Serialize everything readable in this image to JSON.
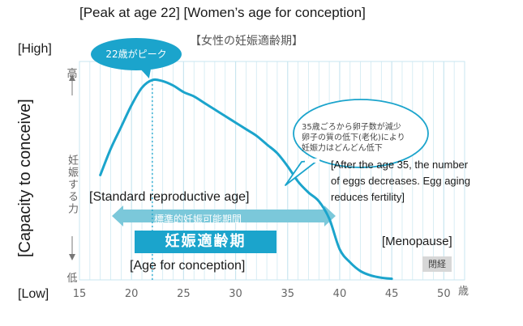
{
  "header": {
    "english_title": "[Peak at  age 22]  [Women’s age for conception]",
    "japanese_title": "【女性の妊娠適齢期】"
  },
  "labels": {
    "high_en": "[High]",
    "low_en": "[Low]",
    "y_axis_en": "[Capacity to conceive]",
    "y_high_jp": "高",
    "y_label_jp": "妊娠する力",
    "y_low_jp": "低",
    "x_unit_jp": "歳"
  },
  "annotations": {
    "peak_bubble": "22歳がピーク",
    "callout_jp_lines": [
      "35歳ごろから卵子数が減少",
      "卵子の質の低下(老化)により",
      "妊娠力はどんどん低下"
    ],
    "callout_en_lines": [
      "[After the age 35,  the number",
      "of eggs decreases. Egg aging",
      "reduces fertility]"
    ],
    "standard_en": "[Standard reproductive age]",
    "standard_jp": "標準的妊娠可能期間",
    "conception_jp": "妊娠適齢期",
    "conception_en": "[Age for conception]",
    "menopause_en": "[Menopause]",
    "menopause_jp": "閉経"
  },
  "chart_data": {
    "type": "line",
    "xlim": [
      15,
      52
    ],
    "ylim": [
      0,
      100
    ],
    "x_ticks": [
      15,
      20,
      25,
      30,
      35,
      40,
      45,
      50
    ],
    "grid": true,
    "peak_age": 22,
    "standard_period": [
      15,
      40
    ],
    "series": [
      {
        "color": "#1ba4cc",
        "x": [
          17,
          18,
          19,
          20,
          21,
          22,
          23,
          24,
          25,
          26,
          27,
          28,
          29,
          30,
          31,
          32,
          33,
          34,
          35,
          36,
          37,
          38,
          39,
          40,
          41,
          42,
          43,
          44,
          45
        ],
        "y": [
          48,
          60,
          70,
          80,
          88,
          91.5,
          91,
          89,
          86,
          84,
          81,
          78,
          75,
          72,
          69,
          66,
          62,
          58,
          52,
          45,
          40,
          36,
          28,
          14,
          8,
          4,
          2,
          1,
          0.5
        ]
      }
    ]
  },
  "colors": {
    "curve": "#1ba4cc",
    "grid": "#c9e6f0",
    "band": "#7bc8da",
    "banner": "#1ba4cc"
  }
}
